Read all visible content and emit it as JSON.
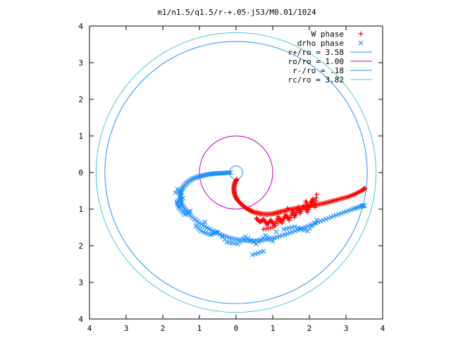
{
  "chart_data": {
    "type": "scatter",
    "title": "m1/n1.5/q1.5/r-+.05-j53/M0.01/1024",
    "xlabel": "",
    "ylabel": "",
    "xlim": [
      -4,
      4
    ],
    "ylim": [
      -4,
      4
    ],
    "xticks": [
      -4,
      -3,
      -2,
      -1,
      0,
      1,
      2,
      3,
      4
    ],
    "yticks": [
      -4,
      -3,
      -2,
      -1,
      0,
      1,
      2,
      3,
      4
    ],
    "xtick_labels": [
      "4",
      "3",
      "2",
      "1",
      "0",
      "1",
      "2",
      "3",
      "4"
    ],
    "ytick_labels": [
      "4",
      "3",
      "2",
      "1",
      "0",
      "1",
      "2",
      "3",
      "4"
    ],
    "grid": false,
    "legend_position": "top-right",
    "series": [
      {
        "name": "W phase",
        "kind": "points",
        "marker": "plus",
        "color": "#ff0000",
        "points": [
          [
            0.02,
            -0.18
          ],
          [
            -0.02,
            -0.25
          ],
          [
            -0.05,
            -0.35
          ],
          [
            -0.06,
            -0.45
          ],
          [
            -0.05,
            -0.55
          ],
          [
            -0.02,
            -0.65
          ],
          [
            0.03,
            -0.74
          ],
          [
            0.1,
            -0.82
          ],
          [
            0.18,
            -0.9
          ],
          [
            0.27,
            -0.97
          ],
          [
            0.37,
            -1.03
          ],
          [
            0.48,
            -1.08
          ],
          [
            0.6,
            -1.11
          ],
          [
            0.72,
            -1.13
          ],
          [
            0.85,
            -1.14
          ],
          [
            0.98,
            -1.13
          ],
          [
            1.1,
            -1.1
          ],
          [
            1.22,
            -1.07
          ],
          [
            1.35,
            -1.04
          ],
          [
            1.5,
            -1.0
          ],
          [
            1.65,
            -0.97
          ],
          [
            1.8,
            -0.95
          ],
          [
            1.95,
            -0.93
          ],
          [
            2.1,
            -0.9
          ],
          [
            2.25,
            -0.87
          ],
          [
            2.4,
            -0.84
          ],
          [
            2.55,
            -0.8
          ],
          [
            2.7,
            -0.76
          ],
          [
            2.85,
            -0.72
          ],
          [
            3.0,
            -0.68
          ],
          [
            3.15,
            -0.63
          ],
          [
            3.3,
            -0.56
          ],
          [
            3.45,
            -0.48
          ],
          [
            3.52,
            -0.43
          ],
          [
            0.55,
            -1.25
          ],
          [
            0.65,
            -1.35
          ],
          [
            0.75,
            -1.28
          ],
          [
            0.85,
            -1.42
          ],
          [
            0.95,
            -1.3
          ],
          [
            1.05,
            -1.45
          ],
          [
            1.15,
            -1.2
          ],
          [
            1.25,
            -1.38
          ],
          [
            1.35,
            -1.15
          ],
          [
            1.45,
            -1.3
          ],
          [
            1.55,
            -1.05
          ],
          [
            1.6,
            -1.22
          ],
          [
            1.7,
            -0.95
          ],
          [
            1.75,
            -1.12
          ],
          [
            1.85,
            -0.9
          ],
          [
            1.95,
            -1.08
          ],
          [
            2.05,
            -0.82
          ],
          [
            2.1,
            -0.72
          ],
          [
            2.15,
            -0.95
          ],
          [
            2.2,
            -0.6
          ],
          [
            0.75,
            -1.55
          ],
          [
            1.0,
            -1.5
          ],
          [
            1.3,
            -1.25
          ],
          [
            1.9,
            -0.78
          ],
          [
            2.0,
            -0.95
          ],
          [
            1.4,
            -0.98
          ]
        ]
      },
      {
        "name": "drho phase",
        "kind": "points",
        "marker": "cross",
        "color": "#1e90ff",
        "points": [
          [
            -0.15,
            0.0
          ],
          [
            -0.3,
            -0.01
          ],
          [
            -0.45,
            -0.02
          ],
          [
            -0.6,
            -0.03
          ],
          [
            -0.75,
            -0.05
          ],
          [
            -0.9,
            -0.08
          ],
          [
            -1.05,
            -0.12
          ],
          [
            -1.2,
            -0.18
          ],
          [
            -1.33,
            -0.27
          ],
          [
            -1.43,
            -0.38
          ],
          [
            -1.5,
            -0.5
          ],
          [
            -1.53,
            -0.63
          ],
          [
            -1.52,
            -0.77
          ],
          [
            -1.46,
            -0.91
          ],
          [
            -1.36,
            -1.05
          ],
          [
            -1.22,
            -1.2
          ],
          [
            -1.05,
            -1.34
          ],
          [
            -0.85,
            -1.48
          ],
          [
            -0.62,
            -1.6
          ],
          [
            -0.38,
            -1.71
          ],
          [
            -0.12,
            -1.8
          ],
          [
            0.15,
            -1.85
          ],
          [
            0.42,
            -1.87
          ],
          [
            0.7,
            -1.85
          ],
          [
            0.98,
            -1.8
          ],
          [
            1.26,
            -1.72
          ],
          [
            1.54,
            -1.62
          ],
          [
            1.82,
            -1.52
          ],
          [
            2.1,
            -1.41
          ],
          [
            2.38,
            -1.3
          ],
          [
            2.66,
            -1.19
          ],
          [
            2.94,
            -1.09
          ],
          [
            3.2,
            -0.99
          ],
          [
            3.42,
            -0.92
          ],
          [
            3.5,
            -0.9
          ],
          [
            -1.6,
            -0.45
          ],
          [
            -1.45,
            -0.7
          ],
          [
            -1.62,
            -0.8
          ],
          [
            -1.55,
            -0.98
          ],
          [
            -1.4,
            -1.15
          ],
          [
            -1.25,
            -1.05
          ],
          [
            -1.1,
            -1.45
          ],
          [
            -0.95,
            -1.6
          ],
          [
            -0.7,
            -1.7
          ],
          [
            -0.5,
            -1.62
          ],
          [
            -0.25,
            -1.9
          ],
          [
            0.05,
            -1.95
          ],
          [
            0.25,
            -1.75
          ],
          [
            0.55,
            -1.95
          ],
          [
            0.8,
            -1.72
          ],
          [
            1.0,
            -1.88
          ],
          [
            1.3,
            -1.55
          ],
          [
            1.6,
            -1.48
          ],
          [
            1.95,
            -1.6
          ],
          [
            2.2,
            -1.3
          ],
          [
            0.45,
            -2.25
          ],
          [
            0.75,
            -2.15
          ],
          [
            -1.65,
            -0.55
          ],
          [
            -0.85,
            -1.35
          ],
          [
            1.1,
            -1.62
          ]
        ]
      },
      {
        "name": "r+/ro = 3.58",
        "kind": "circle",
        "radius": 3.58,
        "color": "#1e90ff"
      },
      {
        "name": "ro/ro = 1.00",
        "kind": "circle",
        "radius": 1.0,
        "color": "#c000c0"
      },
      {
        "name": "r-/ro = .18",
        "kind": "circle",
        "radius": 0.18,
        "color": "#1e90ff"
      },
      {
        "name": "rc/ro = 3.82",
        "kind": "circle",
        "radius": 3.82,
        "color": "#40c8d8"
      }
    ]
  }
}
